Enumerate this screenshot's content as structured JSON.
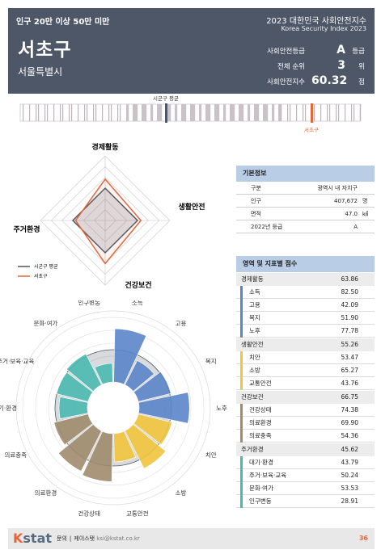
{
  "header": {
    "population_group": "인구 20만 이상 50만 미만",
    "report_title": "2023 대한민국 사회안전지수",
    "report_subtitle": "Korea Security Index 2023",
    "city": "서초구",
    "province": "서울특별시",
    "metrics": [
      {
        "label": "사회안전등급",
        "value": "A",
        "unit": "등급"
      },
      {
        "label": "전체 순위",
        "value": "3",
        "unit": "위"
      },
      {
        "label": "사회안전지수",
        "value": "60.32",
        "unit": "점"
      }
    ]
  },
  "distribution": {
    "avg_label": "시군구 평균",
    "city_label": "서초구",
    "accent_color": "#e2673a",
    "avg_color": "#4d5767"
  },
  "radar": {
    "axes": [
      "경제활동",
      "생활안전",
      "건강보건",
      "주거환경"
    ],
    "legend": [
      {
        "name": "시군구 평균",
        "color": "#4d5767"
      },
      {
        "name": "서초구",
        "color": "#e2673a"
      }
    ],
    "range": [
      0,
      100
    ]
  },
  "basic_info": {
    "title": "기본정보",
    "rows": [
      {
        "k": "구분",
        "v": "광역시 내 자치구",
        "u": ""
      },
      {
        "k": "인구",
        "v": "407,672",
        "u": "명"
      },
      {
        "k": "면적",
        "v": "47.0",
        "u": "㎢"
      },
      {
        "k": "2022년 등급",
        "v": "A",
        "u": ""
      }
    ]
  },
  "scores": {
    "title": "영역 및 지표별 점수",
    "categories": [
      {
        "name": "경제활동",
        "score": "63.86",
        "color": "#5b85c9",
        "items": [
          {
            "n": "소득",
            "v": "82.50"
          },
          {
            "n": "고용",
            "v": "42.09"
          },
          {
            "n": "복지",
            "v": "51.90"
          },
          {
            "n": "노후",
            "v": "77.78"
          }
        ]
      },
      {
        "name": "생활안전",
        "score": "55.26",
        "color": "#f2c43d",
        "items": [
          {
            "n": "치안",
            "v": "53.47"
          },
          {
            "n": "소방",
            "v": "65.27"
          },
          {
            "n": "교통안전",
            "v": "43.76"
          }
        ]
      },
      {
        "name": "건강보건",
        "score": "66.75",
        "color": "#a08b6d",
        "items": [
          {
            "n": "건강상태",
            "v": "74.38"
          },
          {
            "n": "의료환경",
            "v": "69.90"
          },
          {
            "n": "의료충족",
            "v": "54.36"
          }
        ]
      },
      {
        "name": "주거환경",
        "score": "45.62",
        "color": "#4bb8b0",
        "items": [
          {
            "n": "대기·환경",
            "v": "43.79"
          },
          {
            "n": "주거·보육·교육",
            "v": "50.24"
          },
          {
            "n": "문화·여가",
            "v": "53.53"
          },
          {
            "n": "인구변동",
            "v": "28.91"
          }
        ]
      }
    ]
  },
  "chart_data": [
    {
      "type": "radar",
      "categories": [
        "경제활동",
        "생활안전",
        "건강보건",
        "주거환경"
      ],
      "series": [
        {
          "name": "시군구 평균",
          "values": [
            50,
            50,
            50,
            50
          ]
        },
        {
          "name": "서초구",
          "values": [
            63.86,
            55.26,
            66.75,
            45.62
          ]
        }
      ],
      "ylim": [
        0,
        100
      ]
    },
    {
      "type": "polar-bar",
      "categories": [
        "소득",
        "고용",
        "복지",
        "노후",
        "치안",
        "소방",
        "교통안전",
        "건강상태",
        "의료환경",
        "의료충족",
        "대기·환경",
        "주거·보육·교육",
        "문화·여가",
        "인구변동"
      ],
      "series": [
        {
          "name": "서초구",
          "values": [
            82.5,
            42.09,
            51.9,
            77.78,
            53.47,
            65.27,
            43.76,
            74.38,
            69.9,
            54.36,
            43.79,
            50.24,
            53.53,
            28.91
          ]
        }
      ],
      "ylim": [
        0,
        100
      ]
    }
  ],
  "footer": {
    "logo_k": "K",
    "logo_rest": "stat",
    "contact_label": "문의",
    "company": "케이스탯",
    "email": "ksi@kstat.co.kr",
    "page": "36"
  }
}
